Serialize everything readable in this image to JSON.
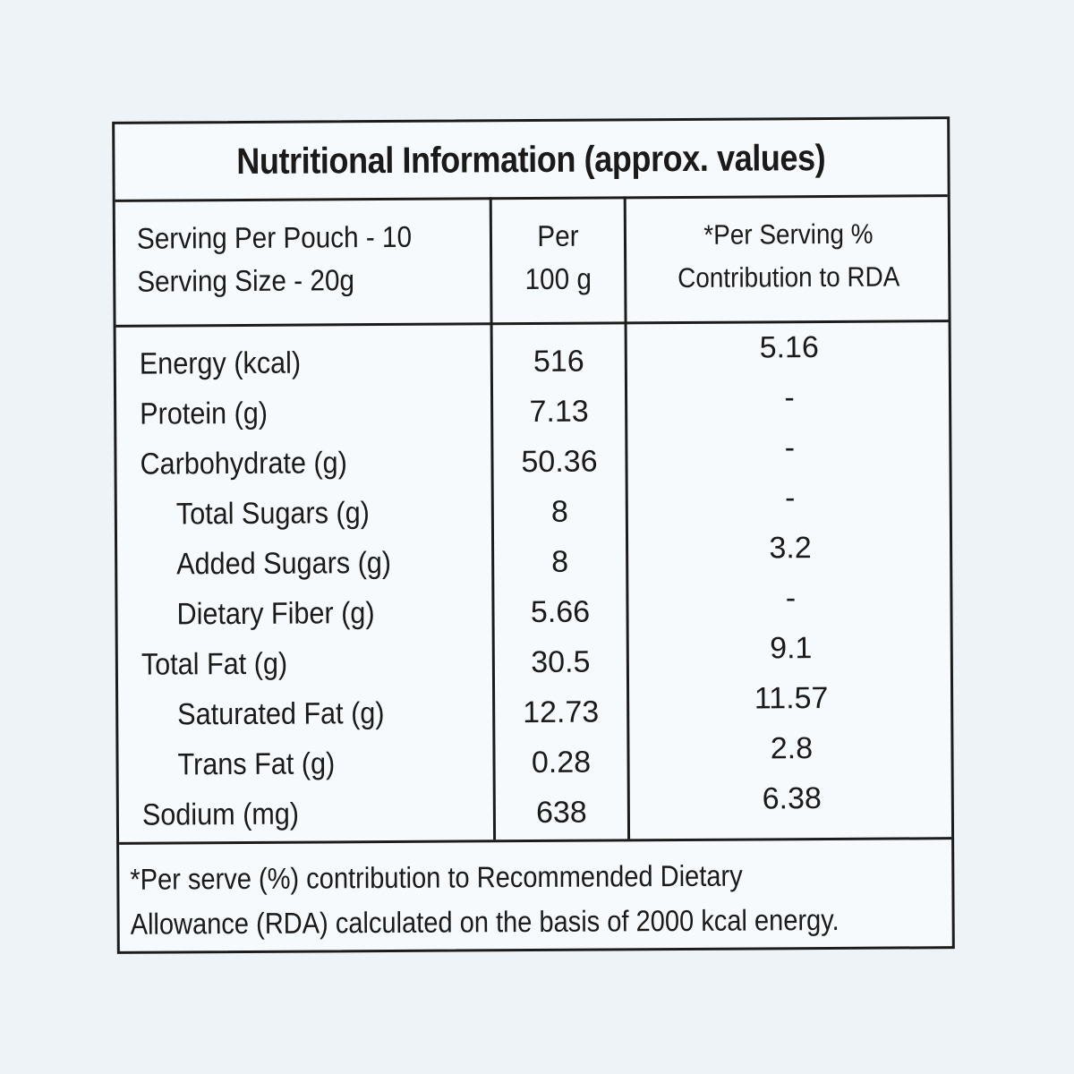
{
  "title": "Nutritional Information (approx. values)",
  "header": {
    "serving_per_pouch": "Serving Per Pouch - 10",
    "serving_size": "Serving Size - 20g",
    "per_line1": "Per",
    "per_line2": "100 g",
    "rda_line1": "*Per Serving %",
    "rda_line2": "Contribution to RDA"
  },
  "rows": [
    {
      "name": "Energy (kcal)",
      "per100g": "516",
      "rda": "5.16"
    },
    {
      "name": "Protein (g)",
      "per100g": "7.13",
      "rda": "-"
    },
    {
      "name": "Carbohydrate (g)",
      "per100g": "50.36",
      "rda": "-"
    },
    {
      "name": "Total Sugars (g)",
      "per100g": "8",
      "rda": "-"
    },
    {
      "name": "Added Sugars (g)",
      "per100g": "8",
      "rda": "3.2"
    },
    {
      "name": "Dietary Fiber (g)",
      "per100g": "5.66",
      "rda": "-"
    },
    {
      "name": "Total Fat (g)",
      "per100g": "30.5",
      "rda": "9.1"
    },
    {
      "name": "Saturated Fat (g)",
      "per100g": "12.73",
      "rda": "11.57"
    },
    {
      "name": "Trans Fat (g)",
      "per100g": "0.28",
      "rda": "2.8"
    },
    {
      "name": "Sodium (mg)",
      "per100g": "638",
      "rda": "6.38"
    }
  ],
  "footnote": {
    "line1": "*Per serve (%) contribution to Recommended Dietary",
    "line2": "Allowance (RDA) calculated on the basis of 2000 kcal energy."
  }
}
